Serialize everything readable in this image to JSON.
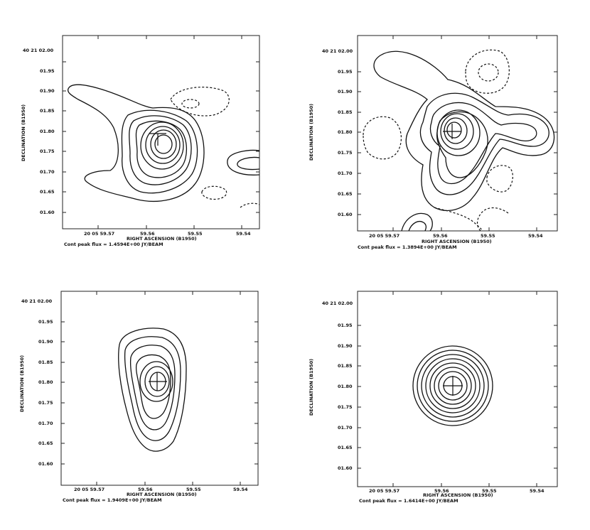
{
  "panels": [
    {
      "id": "top-left",
      "y_ticks": [
        "40 21 02.00",
        "01.95",
        "01.90",
        "01.85",
        "01.80",
        "01.75",
        "01.70",
        "01.65",
        "01.60"
      ],
      "x_ticks": [
        "20 05 59.57",
        "59.56",
        "59.55",
        "59.54"
      ],
      "xlabel": "RIGHT ASCENSION (B1950)",
      "ylabel": "DECLINATION (B1950)",
      "footer": "Cont peak flux =  1.4594E+00 JY/BEAM"
    },
    {
      "id": "top-right",
      "y_ticks": [
        "40 21 02.00",
        "01.95",
        "01.90",
        "01.85",
        "01.80",
        "01.75",
        "01.70",
        "01.65",
        "01.60"
      ],
      "x_ticks": [
        "20 05 59.57",
        "59.56",
        "59.55",
        "59.54"
      ],
      "xlabel": "RIGHT ASCENSION (B1950)",
      "ylabel": "DECLINATION (B1950)",
      "footer": "Cont peak flux =  1.3894E+00 JY/BEAM"
    },
    {
      "id": "bottom-left",
      "y_ticks": [
        "40 21 02.00",
        "01.95",
        "01.90",
        "01.85",
        "01.80",
        "01.75",
        "01.70",
        "01.65",
        "01.60"
      ],
      "x_ticks": [
        "20 05 59.57",
        "59.56",
        "59.55",
        "59.54"
      ],
      "xlabel": "RIGHT ASCENSION (B1950)",
      "ylabel": "DECLINATION (B1950)",
      "footer": "Cont peak flux =  1.9409E+00 JY/BEAM"
    },
    {
      "id": "bottom-right",
      "y_ticks": [
        "40 21 02.00",
        "01.95",
        "01.90",
        "01.85",
        "01.80",
        "01.75",
        "01.70",
        "01.65",
        "01.60"
      ],
      "x_ticks": [
        "20 05 59.57",
        "59.56",
        "59.55",
        "59.54"
      ],
      "xlabel": "RIGHT ASCENSION (B1950)",
      "ylabel": "DECLINATION (B1950)",
      "footer": "Cont peak flux =  1.6414E+00 JY/BEAM"
    }
  ]
}
